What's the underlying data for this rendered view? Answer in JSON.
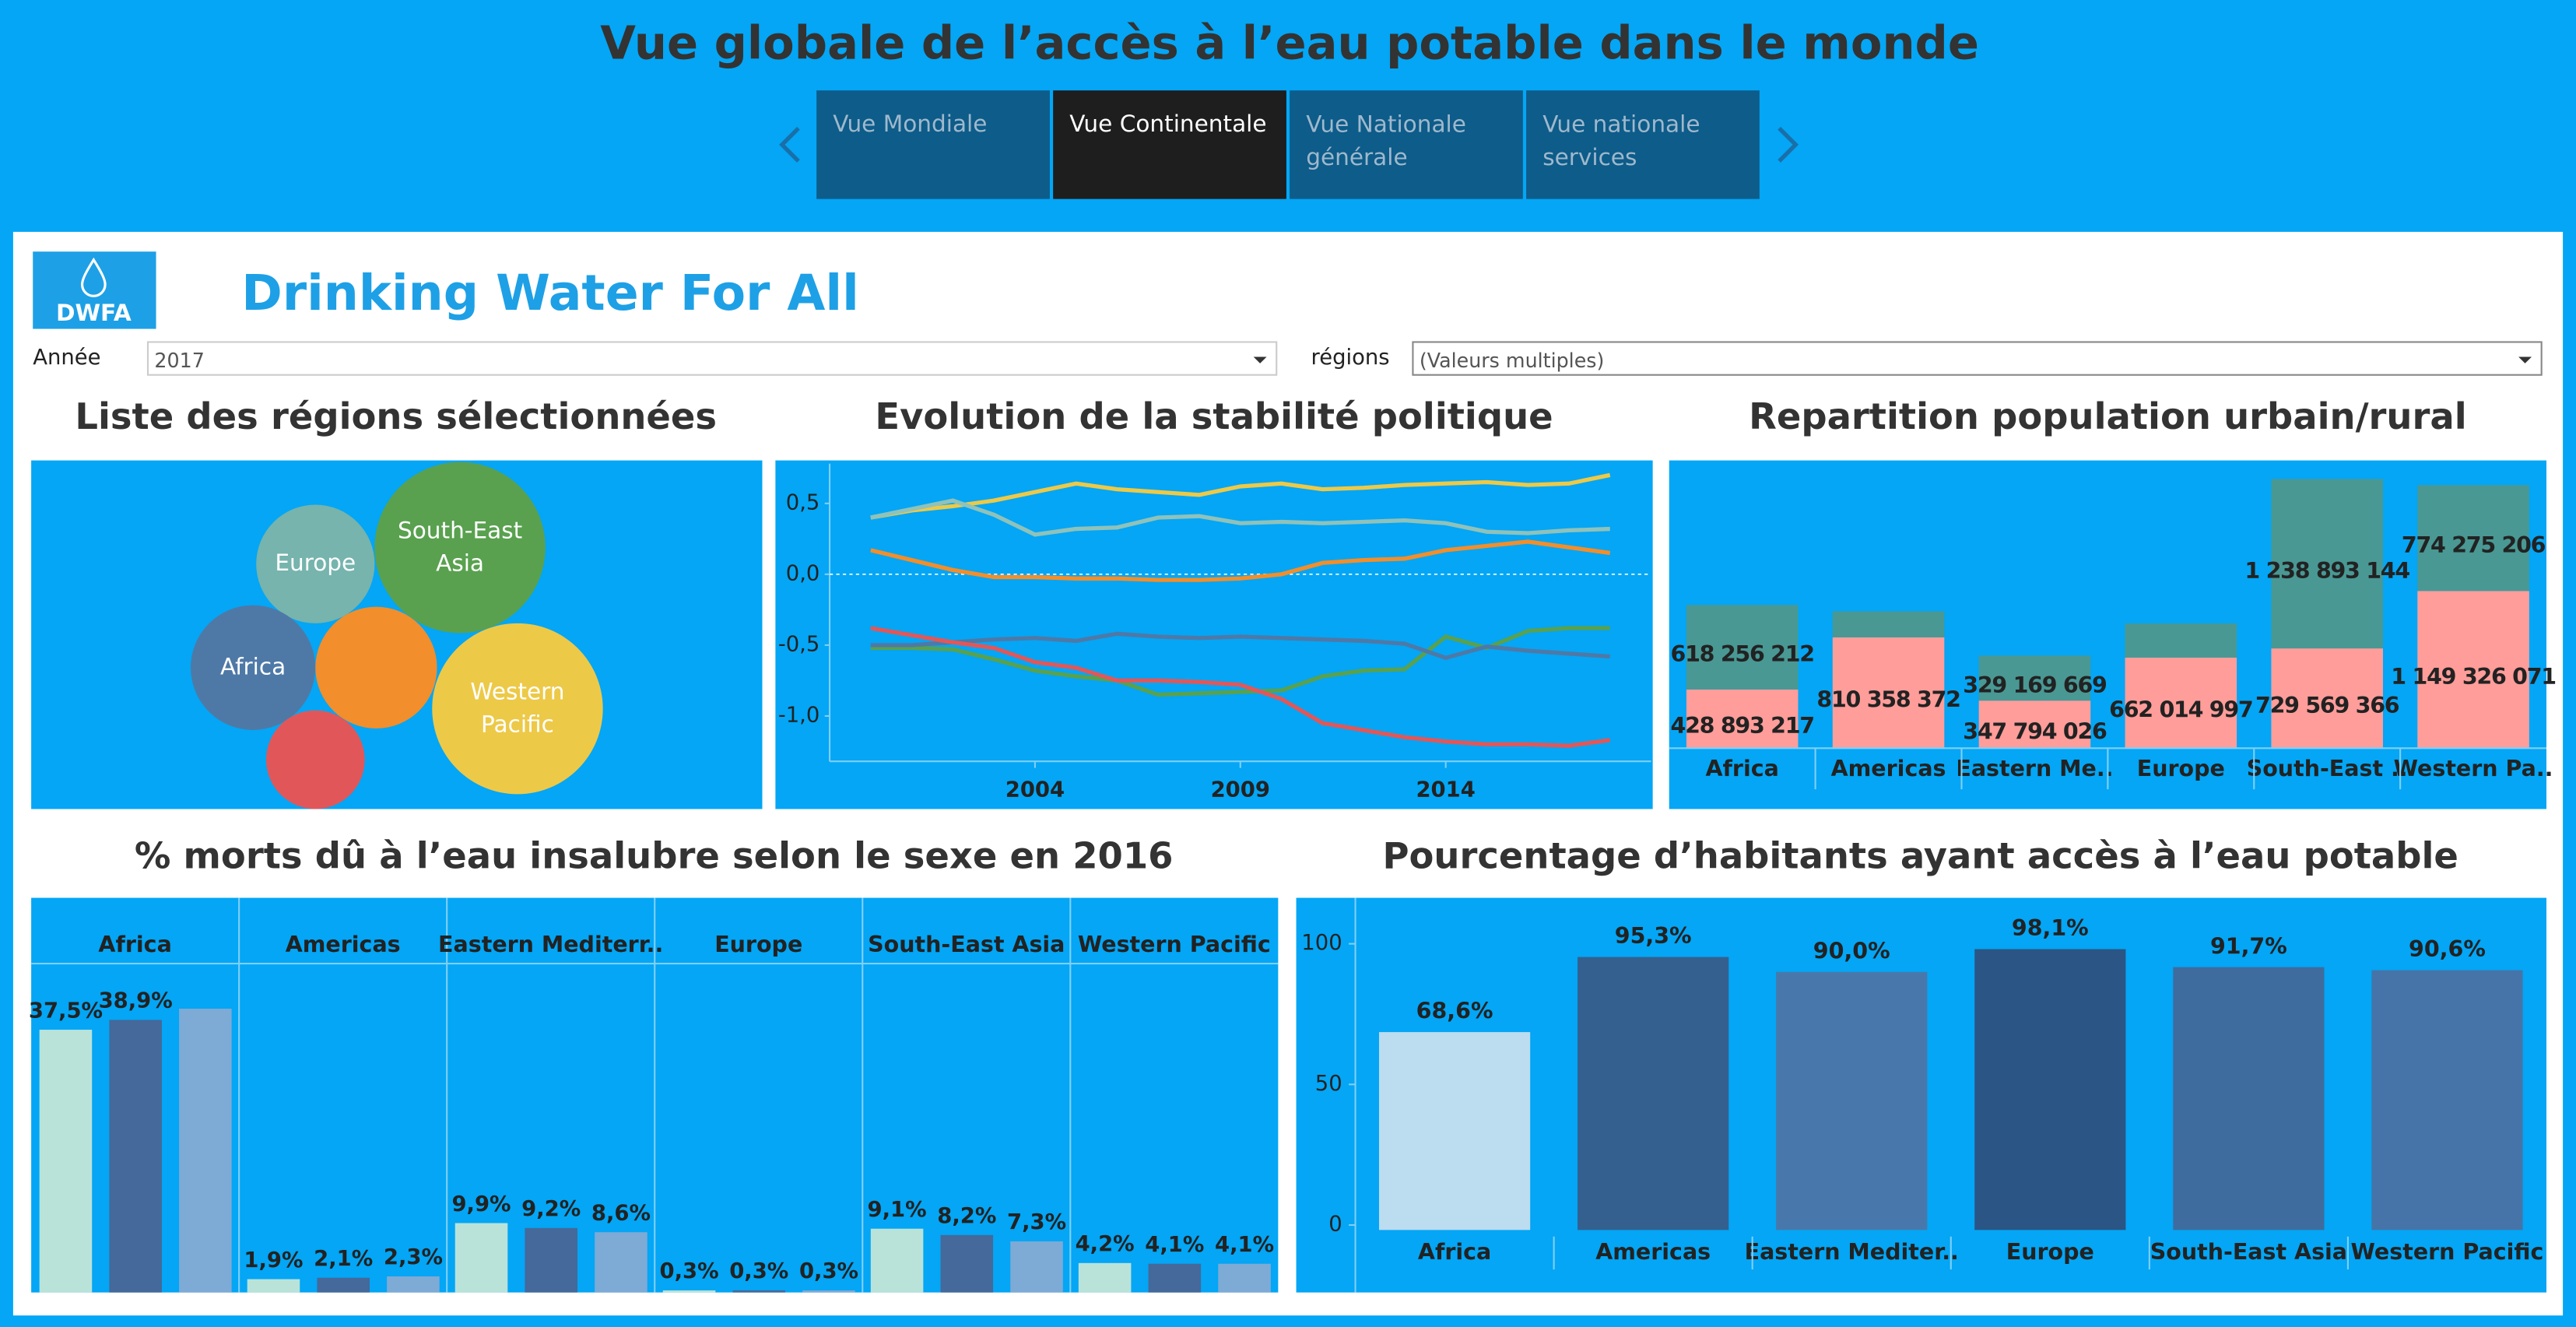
{
  "header": {
    "title": "Vue globale de l’accès à l’eau potable dans le monde",
    "tabs": [
      "Vue Mondiale",
      "Vue Continentale",
      "Vue Nationale générale",
      "Vue nationale services"
    ],
    "active_tab": 1
  },
  "logo": "DWFA",
  "brand": "Drinking Water For All",
  "filters": [
    {
      "label": "Année",
      "value": "2017"
    },
    {
      "label": "régions",
      "value": "(Valeurs multiples)"
    }
  ],
  "chart_data": [
    {
      "type": "bubble",
      "title": "Liste des régions sélectionnées",
      "labels": [
        "Europe",
        "South-East Asia",
        "Africa",
        null,
        "Western Pacific",
        null
      ],
      "values": [
        13,
        27,
        14.4,
        13.7,
        27,
        9
      ],
      "colors": [
        "#76b4ad",
        "#59a14f",
        "#4e79a7",
        "#f28e2b",
        "#edc948",
        "#e15759"
      ]
    },
    {
      "type": "line",
      "title": "Evolution de la stabilité politique",
      "x": [
        2000,
        2001,
        2002,
        2003,
        2004,
        2005,
        2006,
        2007,
        2008,
        2009,
        2010,
        2011,
        2012,
        2013,
        2014,
        2015,
        2016,
        2017,
        2018
      ],
      "xlim": [
        1999,
        2019
      ],
      "xticks": [
        2004,
        2009,
        2014
      ],
      "ylim": [
        -1.32,
        0.78
      ],
      "yticks": [
        {
          "value": 0.5,
          "label": "0,5"
        },
        {
          "value": 0,
          "label": "0,0"
        },
        {
          "value": -0.5,
          "label": "-0,5"
        },
        {
          "value": -1,
          "label": "-1,0"
        }
      ],
      "series": [
        {
          "color": "#edc948",
          "values": [
            0.4,
            0.45,
            0.48,
            0.52,
            0.58,
            0.64,
            0.6,
            0.58,
            0.56,
            0.62,
            0.64,
            0.6,
            0.61,
            0.63,
            0.64,
            0.65,
            0.63,
            0.64,
            0.7
          ]
        },
        {
          "color": "#8fc2bb",
          "values": [
            0.4,
            0.46,
            0.52,
            0.42,
            0.28,
            0.32,
            0.33,
            0.4,
            0.41,
            0.36,
            0.37,
            0.36,
            0.37,
            0.38,
            0.36,
            0.3,
            0.29,
            0.31,
            0.32
          ]
        },
        {
          "color": "#f28e2b",
          "values": [
            0.17,
            0.1,
            0.03,
            -0.02,
            -0.02,
            -0.03,
            -0.03,
            -0.04,
            -0.04,
            -0.03,
            0.0,
            0.08,
            0.1,
            0.11,
            0.17,
            0.2,
            0.23,
            0.19,
            0.15
          ]
        },
        {
          "color": "#59a14f",
          "values": [
            -0.52,
            -0.52,
            -0.53,
            -0.6,
            -0.68,
            -0.72,
            -0.75,
            -0.85,
            -0.84,
            -0.83,
            -0.82,
            -0.72,
            -0.68,
            -0.67,
            -0.44,
            -0.52,
            -0.4,
            -0.38,
            -0.38
          ]
        },
        {
          "color": "#4e79a7",
          "values": [
            -0.5,
            -0.5,
            -0.48,
            -0.46,
            -0.45,
            -0.47,
            -0.42,
            -0.44,
            -0.45,
            -0.44,
            -0.45,
            -0.46,
            -0.47,
            -0.49,
            -0.59,
            -0.51,
            -0.54,
            -0.56,
            -0.58
          ]
        },
        {
          "color": "#e15759",
          "values": [
            -0.38,
            -0.43,
            -0.48,
            -0.52,
            -0.62,
            -0.66,
            -0.75,
            -0.75,
            -0.76,
            -0.78,
            -0.88,
            -1.05,
            -1.1,
            -1.15,
            -1.18,
            -1.2,
            -1.2,
            -1.21,
            -1.17
          ]
        }
      ]
    },
    {
      "type": "stacked_bar",
      "title": "Repartition population urbain/rural",
      "categories": [
        "Africa",
        "Americas",
        "Eastern Me..",
        "Europe",
        "South-East ..",
        "Western Pa.."
      ],
      "ylim": [
        0,
        2080000000
      ],
      "series": [
        {
          "color": "#ff9d9a",
          "values": [
            428893217,
            810358372,
            347794026,
            662014997,
            729569366,
            1149326071
          ],
          "value_labels": [
            "428 893 217",
            "810 358 372",
            "347 794 026",
            "662 014 997",
            "729 569 366",
            "1 149 326 071"
          ]
        },
        {
          "color": "#499894",
          "values": [
            618256212,
            190000000,
            329169669,
            250000000,
            1238893144,
            774275206
          ],
          "value_labels": [
            "618 256 212",
            null,
            "329 169 669",
            null,
            "1 238 893 144",
            "774 275 206"
          ]
        }
      ]
    },
    {
      "type": "grouped_bar",
      "title": "% morts dû à l’eau insalubre selon le sexe en 2016",
      "categories": [
        "Africa",
        "Americas",
        "Eastern Mediterr..",
        "Europe",
        "South-East Asia",
        "Western Pacific"
      ],
      "ylim": [
        0,
        46
      ],
      "series": [
        {
          "color": "#b9e3d9",
          "values": [
            37.5,
            1.9,
            9.9,
            0.3,
            9.1,
            4.2
          ],
          "value_labels": [
            "37,5%",
            "1,9%",
            "9,9%",
            "0,3%",
            "9,1%",
            "4,2%"
          ]
        },
        {
          "color": "#44699a",
          "values": [
            38.9,
            2.1,
            9.2,
            0.3,
            8.2,
            4.1
          ],
          "value_labels": [
            "38,9%",
            "2,1%",
            "9,2%",
            "0,3%",
            "8,2%",
            "4,1%"
          ]
        },
        {
          "color": "#7eaad6",
          "values": [
            40.5,
            2.3,
            8.6,
            0.3,
            7.3,
            4.1
          ],
          "value_labels": [
            null,
            "2,3%",
            "8,6%",
            "0,3%",
            "7,3%",
            "4,1%"
          ]
        }
      ]
    },
    {
      "type": "bar",
      "title": "Pourcentage d’habitants ayant accès à l’eau potable",
      "categories": [
        "Africa",
        "Americas",
        "Eastern Mediter..",
        "Europe",
        "South-East Asia",
        "Western Pacific"
      ],
      "values": [
        68.6,
        95.3,
        90.0,
        98.1,
        91.7,
        90.6
      ],
      "value_labels": [
        "68,6%",
        "95,3%",
        "90,0%",
        "98,1%",
        "91,7%",
        "90,6%"
      ],
      "colors": [
        "#bcdcf0",
        "#34608f",
        "#4878ab",
        "#2a5585",
        "#3f6c9e",
        "#4674a8"
      ],
      "ylim": [
        0,
        114
      ],
      "yticks": [
        0,
        50,
        100
      ]
    }
  ]
}
